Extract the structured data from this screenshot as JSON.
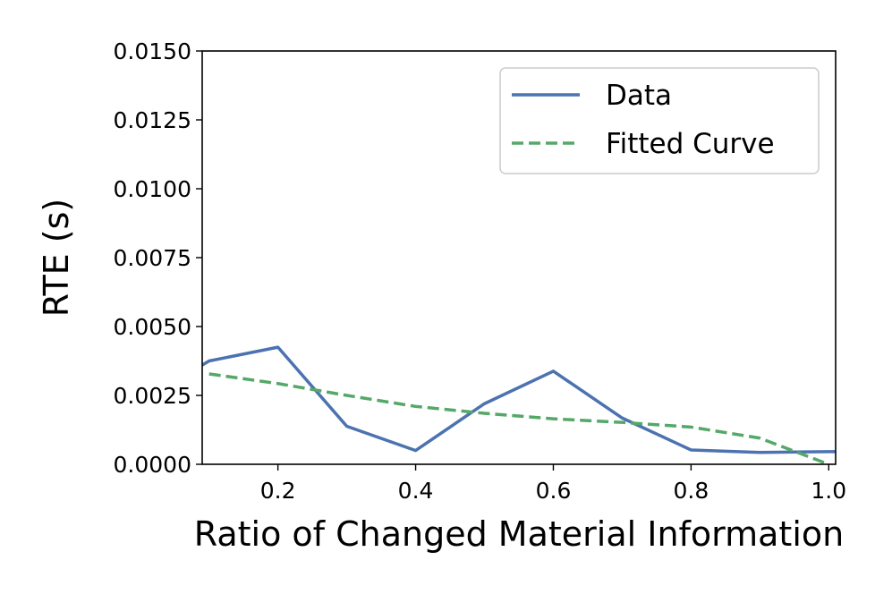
{
  "chart_data": {
    "type": "line",
    "xlabel": "Ratio of Changed Material Information",
    "ylabel": "RTE (s)",
    "xlim": [
      0.09,
      1.01
    ],
    "ylim": [
      0.0,
      0.015
    ],
    "x_ticks": [
      "0.2",
      "0.4",
      "0.6",
      "0.8",
      "1.0"
    ],
    "y_ticks": [
      "0.0000",
      "0.0025",
      "0.0050",
      "0.0075",
      "0.0100",
      "0.0125",
      "0.0150"
    ],
    "grid": false,
    "legend_position": "top-right",
    "series": [
      {
        "name": "Data",
        "style": "solid",
        "color": "#4c72b0",
        "x": [
          0.09,
          0.1,
          0.2,
          0.3,
          0.4,
          0.5,
          0.6,
          0.7,
          0.8,
          0.9,
          1.0,
          1.01
        ],
        "y": [
          0.0036,
          0.00375,
          0.00425,
          0.00138,
          0.0005,
          0.0022,
          0.00338,
          0.00168,
          0.00052,
          0.00043,
          0.00046,
          0.00046
        ]
      },
      {
        "name": "Fitted Curve",
        "style": "dashed",
        "color": "#55a868",
        "x": [
          0.1,
          0.2,
          0.3,
          0.4,
          0.5,
          0.6,
          0.7,
          0.8,
          0.9,
          1.0
        ],
        "y": [
          0.00328,
          0.00293,
          0.0025,
          0.0021,
          0.00185,
          0.00165,
          0.00152,
          0.00135,
          0.00095,
          0.0
        ]
      }
    ]
  }
}
